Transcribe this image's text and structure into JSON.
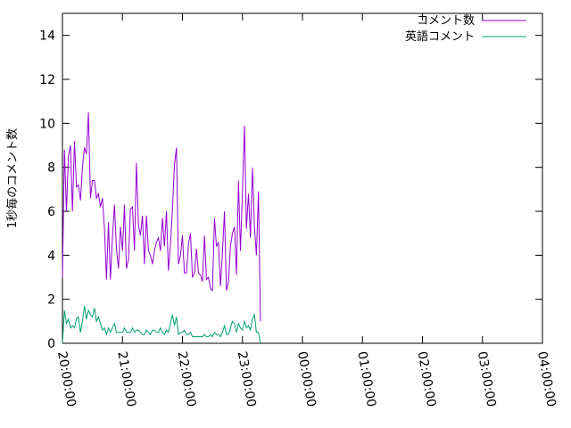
{
  "chart_data": {
    "type": "line",
    "title": "",
    "xlabel": "",
    "ylabel": "1秒毎のコメント数",
    "ylim": [
      0,
      15
    ],
    "y_ticks": [
      0,
      2,
      4,
      6,
      8,
      10,
      12,
      14
    ],
    "x_range": [
      "20:00:00",
      "04:00:00"
    ],
    "x_ticks": [
      "20:00:00",
      "21:00:00",
      "22:00:00",
      "23:00:00",
      "00:00:00",
      "01:00:00",
      "02:00:00",
      "03:00:00",
      "04:00:00"
    ],
    "x_tick_minutes": [
      0,
      60,
      120,
      180,
      240,
      300,
      360,
      420,
      480
    ],
    "x_step_minutes": 2,
    "grid": false,
    "legend_position": "top-right",
    "series": [
      {
        "name": "コメント数",
        "color": "#9400d3",
        "values": [
          3.0,
          8.8,
          6.0,
          8.5,
          9.0,
          6.0,
          9.2,
          7.1,
          7.2,
          6.5,
          8.0,
          8.9,
          8.6,
          10.5,
          6.6,
          7.4,
          7.4,
          6.6,
          6.8,
          6.2,
          6.6,
          5.2,
          2.9,
          5.5,
          2.9,
          4.8,
          6.3,
          4.3,
          3.4,
          5.3,
          4.2,
          6.3,
          3.4,
          3.8,
          6.1,
          6.2,
          4.2,
          8.2,
          5.4,
          4.9,
          5.8,
          3.6,
          5.8,
          4.2,
          4.0,
          3.6,
          4.2,
          4.6,
          4.8,
          4.2,
          5.7,
          4.4,
          6.0,
          3.3,
          4.5,
          6.1,
          8.1,
          8.9,
          3.6,
          4.0,
          4.9,
          3.2,
          3.2,
          4.5,
          5.0,
          3.0,
          3.2,
          4.3,
          3.2,
          3.1,
          2.8,
          4.9,
          2.9,
          3.0,
          2.5,
          2.4,
          5.7,
          4.4,
          4.6,
          2.6,
          4.1,
          6.0,
          2.4,
          2.8,
          4.4,
          5.0,
          5.3,
          3.1,
          7.4,
          4.2,
          7.0,
          9.9,
          5.2,
          6.8,
          4.8,
          8.0,
          5.3,
          4.0,
          6.9,
          1.0
        ]
      },
      {
        "name": "英語コメント",
        "color": "#009e73",
        "values": [
          0.0,
          1.5,
          0.9,
          1.1,
          0.7,
          0.8,
          0.7,
          1.1,
          1.2,
          0.5,
          1.0,
          1.7,
          1.1,
          1.5,
          1.3,
          1.2,
          1.6,
          1.0,
          1.2,
          0.9,
          0.6,
          0.7,
          0.4,
          0.7,
          0.5,
          0.7,
          0.9,
          0.5,
          0.5,
          0.5,
          0.5,
          0.7,
          0.5,
          0.5,
          0.5,
          0.7,
          0.5,
          0.6,
          0.6,
          0.5,
          0.4,
          0.4,
          0.6,
          0.5,
          0.4,
          0.6,
          0.6,
          0.5,
          0.5,
          0.7,
          0.5,
          0.4,
          0.6,
          0.5,
          0.9,
          1.3,
          0.8,
          1.2,
          0.4,
          0.5,
          0.5,
          0.6,
          0.4,
          0.4,
          0.5,
          0.3,
          0.3,
          0.3,
          0.3,
          0.3,
          0.3,
          0.4,
          0.3,
          0.3,
          0.4,
          0.3,
          0.5,
          0.4,
          0.4,
          0.3,
          0.5,
          0.8,
          0.4,
          0.4,
          0.7,
          1.0,
          0.9,
          0.5,
          0.9,
          0.7,
          0.6,
          1.0,
          0.7,
          0.8,
          0.6,
          1.1,
          1.3,
          0.5,
          0.5,
          0.0
        ]
      }
    ]
  }
}
